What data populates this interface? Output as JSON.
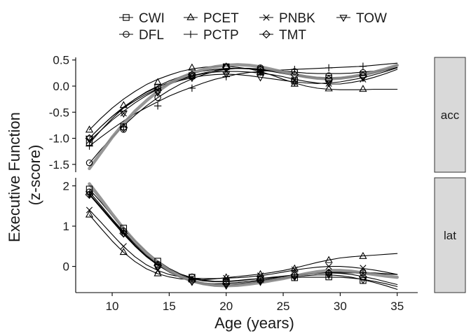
{
  "chart_data": {
    "type": "line",
    "xlabel": "Age (years)",
    "ylabel_lines": [
      "Executive Function",
      "(z-score)"
    ],
    "xlim": [
      6.8,
      36.8
    ],
    "xticks": [
      10,
      15,
      20,
      25,
      30,
      35
    ],
    "marker_ages": [
      8,
      11,
      14,
      17,
      20,
      23,
      26,
      29,
      32
    ],
    "curve_ages": [
      8,
      9,
      10,
      11,
      12,
      13,
      14,
      15,
      16,
      17,
      18,
      19,
      20,
      21,
      22,
      23,
      24,
      25,
      26,
      27,
      28,
      29,
      30,
      31,
      32,
      33,
      34,
      35
    ],
    "legend": [
      {
        "name": "CWI",
        "marker": "square"
      },
      {
        "name": "DFL",
        "marker": "circle"
      },
      {
        "name": "PCET",
        "marker": "triangle-up"
      },
      {
        "name": "PCTP",
        "marker": "plus"
      },
      {
        "name": "PNBK",
        "marker": "cross"
      },
      {
        "name": "TMT",
        "marker": "diamond"
      },
      {
        "name": "TOW",
        "marker": "triangle-down"
      }
    ],
    "panels": [
      {
        "strip": "acc",
        "ylim": [
          -1.65,
          0.55
        ],
        "yticks": [
          0.5,
          0.0,
          -0.5,
          -1.0,
          -1.5
        ],
        "ytick_labels": [
          "0.5",
          "0.0",
          "-0.5",
          "-1.0",
          "-1.5"
        ],
        "series": [
          {
            "name": "CWI",
            "curve": [
              -1.1,
              -0.85,
              -0.62,
              -0.42,
              -0.25,
              -0.12,
              -0.02,
              0.07,
              0.14,
              0.2,
              0.25,
              0.3,
              0.33,
              0.34,
              0.34,
              0.32,
              0.29,
              0.26,
              0.22,
              0.19,
              0.17,
              0.16,
              0.16,
              0.18,
              0.21,
              0.26,
              0.32,
              0.4
            ],
            "markers": [
              -1.08,
              -0.78,
              -0.02,
              0.2,
              0.37,
              0.31,
              0.1,
              0.15,
              0.22
            ]
          },
          {
            "name": "DFL",
            "curve": [
              -1.48,
              -1.22,
              -0.98,
              -0.76,
              -0.56,
              -0.38,
              -0.22,
              -0.08,
              0.04,
              0.14,
              0.22,
              0.28,
              0.32,
              0.34,
              0.34,
              0.33,
              0.31,
              0.29,
              0.27,
              0.25,
              0.24,
              0.24,
              0.24,
              0.25,
              0.27,
              0.29,
              0.32,
              0.35
            ],
            "markers": [
              -1.47,
              -0.83,
              -0.22,
              0.18,
              0.37,
              0.35,
              0.28,
              0.2,
              0.26
            ]
          },
          {
            "name": "PCET",
            "curve": [
              -0.84,
              -0.62,
              -0.42,
              -0.25,
              -0.1,
              0.03,
              0.13,
              0.21,
              0.28,
              0.33,
              0.36,
              0.38,
              0.38,
              0.36,
              0.33,
              0.28,
              0.21,
              0.13,
              0.06,
              0.0,
              -0.04,
              -0.06,
              -0.07,
              -0.07,
              -0.07,
              -0.06,
              -0.06,
              -0.06
            ],
            "markers": [
              -0.84,
              -0.37,
              0.07,
              0.35,
              0.37,
              0.27,
              0.04,
              -0.05,
              -0.06
            ]
          },
          {
            "name": "PCTP",
            "curve": [
              -1.15,
              -0.98,
              -0.82,
              -0.67,
              -0.53,
              -0.41,
              -0.3,
              -0.19,
              -0.1,
              -0.02,
              0.06,
              0.13,
              0.18,
              0.23,
              0.26,
              0.28,
              0.3,
              0.31,
              0.32,
              0.33,
              0.34,
              0.35,
              0.36,
              0.37,
              0.38,
              0.4,
              0.42,
              0.44
            ],
            "markers": [
              -1.15,
              -0.78,
              -0.38,
              -0.04,
              0.18,
              0.27,
              0.32,
              0.35,
              0.38
            ]
          },
          {
            "name": "PNBK",
            "curve": [
              -1.05,
              -0.85,
              -0.65,
              -0.48,
              -0.32,
              -0.18,
              -0.06,
              0.04,
              0.12,
              0.19,
              0.24,
              0.27,
              0.28,
              0.28,
              0.27,
              0.25,
              0.22,
              0.18,
              0.13,
              0.09,
              0.06,
              0.04,
              0.04,
              0.07,
              0.11,
              0.17,
              0.24,
              0.32
            ],
            "markers": [
              -1.05,
              -0.52,
              -0.08,
              0.19,
              0.28,
              0.25,
              0.12,
              0.05,
              0.13
            ]
          },
          {
            "name": "TMT",
            "curve": [
              -1.0,
              -0.78,
              -0.58,
              -0.4,
              -0.25,
              -0.11,
              0.0,
              0.1,
              0.18,
              0.24,
              0.29,
              0.32,
              0.34,
              0.34,
              0.33,
              0.31,
              0.28,
              0.24,
              0.2,
              0.17,
              0.15,
              0.14,
              0.15,
              0.17,
              0.2,
              0.25,
              0.3,
              0.36
            ],
            "markers": [
              -1.0,
              -0.8,
              -0.08,
              0.22,
              0.36,
              0.32,
              0.22,
              0.13,
              0.2
            ]
          },
          {
            "name": "TOW",
            "curve": [
              -1.0,
              -0.78,
              -0.58,
              -0.42,
              -0.28,
              -0.15,
              -0.05,
              0.04,
              0.11,
              0.16,
              0.2,
              0.22,
              0.23,
              0.22,
              0.2,
              0.17,
              0.14,
              0.11,
              0.08,
              0.06,
              0.05,
              0.06,
              0.08,
              0.12,
              0.16,
              0.22,
              0.28,
              0.35
            ],
            "markers": [
              -1.0,
              -0.52,
              -0.12,
              0.16,
              0.23,
              0.17,
              0.08,
              0.06,
              0.16
            ]
          },
          {
            "name": "average",
            "curve": [
              -1.58,
              -1.28,
              -0.98,
              -0.72,
              -0.48,
              -0.28,
              -0.1,
              0.05,
              0.16,
              0.25,
              0.32,
              0.37,
              0.4,
              0.41,
              0.4,
              0.37,
              0.32,
              0.27,
              0.22,
              0.18,
              0.15,
              0.14,
              0.15,
              0.18,
              0.22,
              0.27,
              0.33,
              0.4
            ]
          }
        ]
      },
      {
        "strip": "lat",
        "ylim": [
          -0.65,
          2.2
        ],
        "yticks": [
          2,
          1,
          0
        ],
        "ytick_labels": [
          "2",
          "1",
          "0"
        ],
        "series": [
          {
            "name": "CWI",
            "curve": [
              1.92,
              1.6,
              1.26,
              0.94,
              0.63,
              0.36,
              0.14,
              -0.05,
              -0.19,
              -0.28,
              -0.34,
              -0.37,
              -0.37,
              -0.35,
              -0.32,
              -0.3,
              -0.28,
              -0.27,
              -0.27,
              -0.27,
              -0.27,
              -0.27,
              -0.27,
              -0.29,
              -0.32,
              -0.37,
              -0.43,
              -0.5
            ],
            "markers": [
              1.92,
              0.95,
              0.13,
              -0.27,
              -0.38,
              -0.32,
              -0.28,
              -0.26,
              -0.35
            ]
          },
          {
            "name": "DFL",
            "curve": [
              1.85,
              1.52,
              1.18,
              0.86,
              0.56,
              0.3,
              0.09,
              -0.08,
              -0.21,
              -0.3,
              -0.36,
              -0.38,
              -0.38,
              -0.36,
              -0.33,
              -0.3,
              -0.27,
              -0.24,
              -0.21,
              -0.19,
              -0.17,
              -0.16,
              -0.16,
              -0.16,
              -0.17,
              -0.18,
              -0.19,
              -0.2
            ],
            "markers": [
              1.85,
              0.88,
              0.05,
              -0.26,
              -0.38,
              -0.32,
              -0.23,
              -0.17,
              -0.16
            ]
          },
          {
            "name": "PCET",
            "curve": [
              1.28,
              0.95,
              0.63,
              0.35,
              0.12,
              -0.06,
              -0.18,
              -0.26,
              -0.31,
              -0.33,
              -0.33,
              -0.31,
              -0.28,
              -0.25,
              -0.22,
              -0.19,
              -0.15,
              -0.1,
              -0.04,
              0.03,
              0.1,
              0.16,
              0.21,
              0.24,
              0.26,
              0.28,
              0.3,
              0.32
            ],
            "markers": [
              1.28,
              0.35,
              -0.18,
              -0.33,
              -0.28,
              -0.2,
              -0.06,
              0.15,
              0.25
            ]
          },
          {
            "name": "PCTP",
            "curve": [
              1.8,
              1.48,
              1.15,
              0.83,
              0.53,
              0.27,
              0.06,
              -0.12,
              -0.26,
              -0.36,
              -0.42,
              -0.45,
              -0.45,
              -0.43,
              -0.4,
              -0.36,
              -0.32,
              -0.28,
              -0.24,
              -0.2,
              -0.17,
              -0.15,
              -0.14,
              -0.14,
              -0.15,
              -0.16,
              -0.18,
              -0.2
            ],
            "markers": [
              1.8,
              0.88,
              0.05,
              -0.34,
              -0.45,
              -0.36,
              -0.25,
              -0.15,
              -0.15
            ]
          },
          {
            "name": "PNBK",
            "curve": [
              1.4,
              1.1,
              0.79,
              0.49,
              0.24,
              0.04,
              -0.1,
              -0.2,
              -0.26,
              -0.29,
              -0.3,
              -0.3,
              -0.29,
              -0.28,
              -0.26,
              -0.23,
              -0.19,
              -0.14,
              -0.09,
              -0.05,
              -0.02,
              0.0,
              0.0,
              -0.02,
              -0.05,
              -0.09,
              -0.14,
              -0.2
            ],
            "markers": [
              1.4,
              0.5,
              -0.1,
              -0.29,
              -0.29,
              -0.23,
              -0.08,
              0.0,
              -0.04
            ]
          },
          {
            "name": "TMT",
            "curve": [
              1.78,
              1.45,
              1.12,
              0.8,
              0.5,
              0.24,
              0.03,
              -0.14,
              -0.27,
              -0.36,
              -0.41,
              -0.43,
              -0.42,
              -0.4,
              -0.37,
              -0.34,
              -0.3,
              -0.26,
              -0.22,
              -0.19,
              -0.17,
              -0.16,
              -0.17,
              -0.2,
              -0.25,
              -0.31,
              -0.38,
              -0.45
            ],
            "markers": [
              1.78,
              0.82,
              0.02,
              -0.36,
              -0.42,
              -0.33,
              -0.21,
              -0.16,
              -0.26
            ]
          },
          {
            "name": "TOW",
            "curve": [
              1.8,
              1.48,
              1.14,
              0.82,
              0.52,
              0.26,
              0.04,
              -0.14,
              -0.28,
              -0.38,
              -0.45,
              -0.48,
              -0.48,
              -0.46,
              -0.42,
              -0.38,
              -0.34,
              -0.3,
              -0.26,
              -0.23,
              -0.21,
              -0.21,
              -0.23,
              -0.27,
              -0.33,
              -0.4,
              -0.48,
              -0.57
            ],
            "markers": [
              1.8,
              0.82,
              -0.02,
              -0.38,
              -0.47,
              -0.38,
              -0.26,
              -0.21,
              -0.33
            ]
          },
          {
            "name": "average",
            "curve": [
              2.05,
              1.68,
              1.3,
              0.94,
              0.62,
              0.34,
              0.1,
              -0.1,
              -0.25,
              -0.36,
              -0.43,
              -0.47,
              -0.48,
              -0.47,
              -0.44,
              -0.4,
              -0.35,
              -0.3,
              -0.24,
              -0.18,
              -0.13,
              -0.1,
              -0.1,
              -0.12,
              -0.16,
              -0.2,
              -0.24,
              -0.27
            ]
          }
        ]
      }
    ]
  }
}
